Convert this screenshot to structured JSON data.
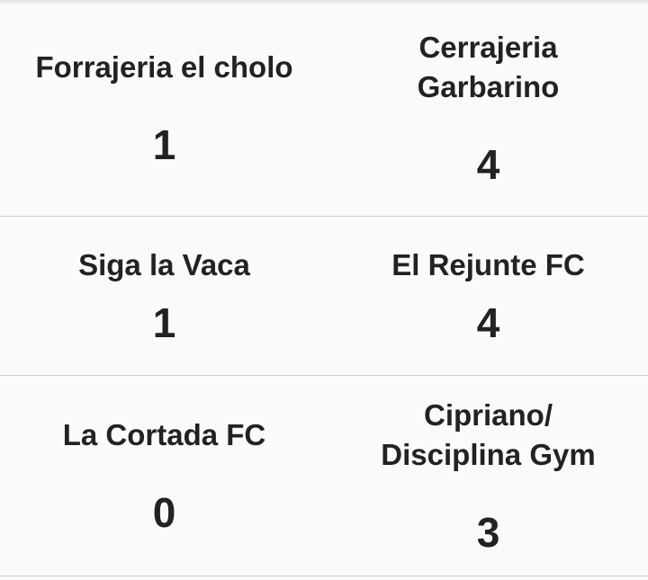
{
  "matches": [
    {
      "home": {
        "name": "Forrajeria el cholo",
        "score": "1"
      },
      "away": {
        "name": "Cerrajeria Garbarino",
        "score": "4"
      }
    },
    {
      "home": {
        "name": "Siga la Vaca",
        "score": "1"
      },
      "away": {
        "name": "El Rejunte FC",
        "score": "4"
      }
    },
    {
      "home": {
        "name": "La Cortada FC",
        "score": "0"
      },
      "away": {
        "name": "Cipriano/ Disciplina Gym",
        "score": "3"
      }
    }
  ]
}
